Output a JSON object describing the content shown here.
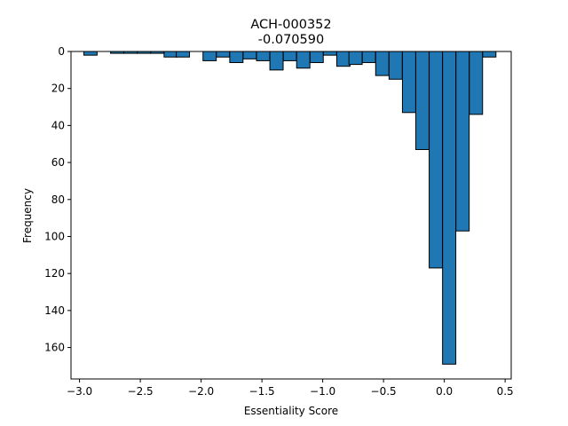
{
  "chart_data": {
    "type": "bar",
    "title": "ACH-000352",
    "subtitle": "-0.070590",
    "xlabel": "Essentiality Score",
    "ylabel": "Frequency",
    "xlim": [
      -3.07,
      0.55
    ],
    "ylim": [
      0,
      177
    ],
    "y_inverted": true,
    "bin_width": 0.109,
    "x_ticks": [
      -3.0,
      -2.5,
      -2.0,
      -1.5,
      -1.0,
      -0.5,
      0.0,
      0.5
    ],
    "x_tick_labels": [
      "−3.0",
      "−2.5",
      "−2.0",
      "−1.5",
      "−1.0",
      "−0.5",
      "0.0",
      "0.5"
    ],
    "y_ticks": [
      0,
      20,
      40,
      60,
      80,
      100,
      120,
      140,
      160
    ],
    "y_tick_labels": [
      "0",
      "20",
      "40",
      "60",
      "80",
      "100",
      "120",
      "140",
      "160"
    ],
    "bins": [
      {
        "x": -2.91,
        "count": 2
      },
      {
        "x": -2.8,
        "count": 0
      },
      {
        "x": -2.69,
        "count": 1
      },
      {
        "x": -2.58,
        "count": 1
      },
      {
        "x": -2.47,
        "count": 1
      },
      {
        "x": -2.36,
        "count": 1
      },
      {
        "x": -2.25,
        "count": 3
      },
      {
        "x": -2.15,
        "count": 3
      },
      {
        "x": -2.04,
        "count": 0
      },
      {
        "x": -1.93,
        "count": 5
      },
      {
        "x": -1.82,
        "count": 3
      },
      {
        "x": -1.71,
        "count": 6
      },
      {
        "x": -1.6,
        "count": 4
      },
      {
        "x": -1.49,
        "count": 5
      },
      {
        "x": -1.38,
        "count": 10
      },
      {
        "x": -1.27,
        "count": 5
      },
      {
        "x": -1.16,
        "count": 9
      },
      {
        "x": -1.05,
        "count": 6
      },
      {
        "x": -0.94,
        "count": 2
      },
      {
        "x": -0.83,
        "count": 8
      },
      {
        "x": -0.73,
        "count": 7
      },
      {
        "x": -0.62,
        "count": 6
      },
      {
        "x": -0.51,
        "count": 13
      },
      {
        "x": -0.4,
        "count": 15
      },
      {
        "x": -0.29,
        "count": 33
      },
      {
        "x": -0.18,
        "count": 53
      },
      {
        "x": -0.07,
        "count": 117
      },
      {
        "x": 0.04,
        "count": 169
      },
      {
        "x": 0.15,
        "count": 97
      },
      {
        "x": 0.26,
        "count": 34
      },
      {
        "x": 0.37,
        "count": 3
      }
    ],
    "bar_color": "#1f77b4",
    "edge_color": "#000000",
    "grid": false,
    "legend": "none"
  }
}
